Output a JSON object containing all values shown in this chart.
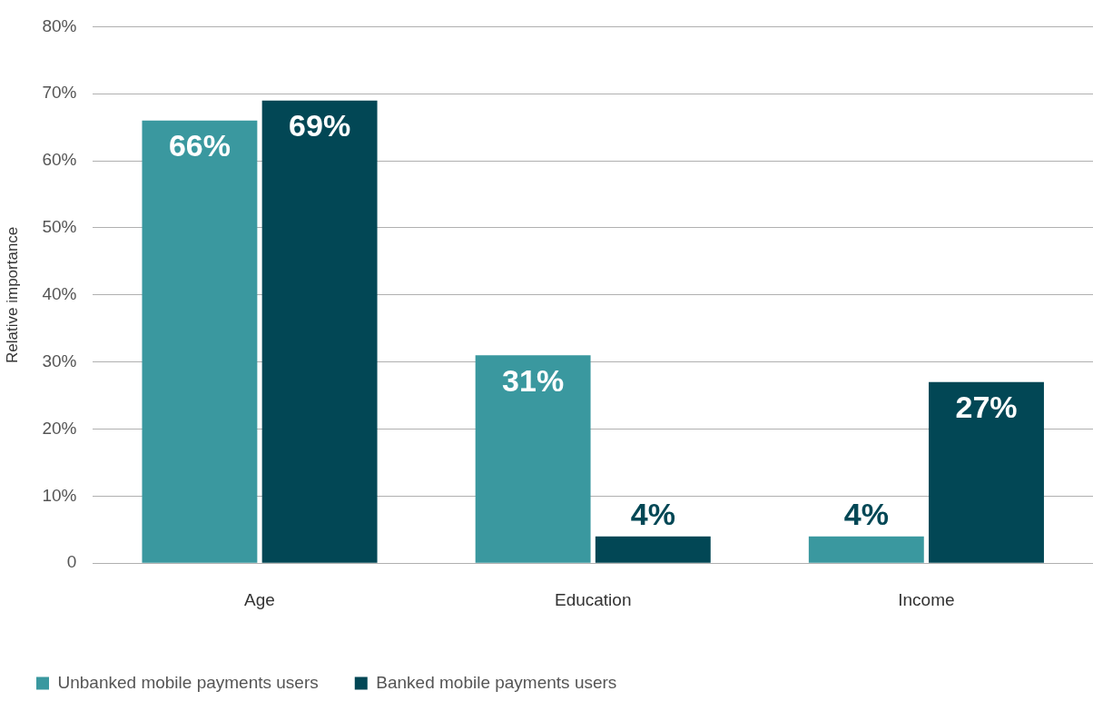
{
  "chart_data": {
    "type": "bar",
    "ylabel": "Relative importance",
    "categories": [
      "Age",
      "Education",
      "Income"
    ],
    "series": [
      {
        "name": "Unbanked mobile payments users",
        "color": "#3a989f",
        "values": [
          66,
          31,
          4
        ],
        "value_labels": [
          "66%",
          "31%",
          "4%"
        ]
      },
      {
        "name": "Banked mobile payments users",
        "color": "#024755",
        "values": [
          69,
          4,
          27
        ],
        "value_labels": [
          "69%",
          "4%",
          "27%"
        ]
      }
    ],
    "ylim": [
      0,
      80
    ],
    "yticks": [
      0,
      {
        "value": 10,
        "label": "10%"
      },
      {
        "value": 20,
        "label": "20%"
      },
      {
        "value": 30,
        "label": "30%"
      },
      {
        "value": 40,
        "label": "40%"
      },
      {
        "value": 50,
        "label": "50%"
      },
      {
        "value": 60,
        "label": "60%"
      },
      {
        "value": 70,
        "label": "70%"
      },
      {
        "value": 80,
        "label": "80%"
      }
    ],
    "grid": "y",
    "legend": "bottom left"
  }
}
